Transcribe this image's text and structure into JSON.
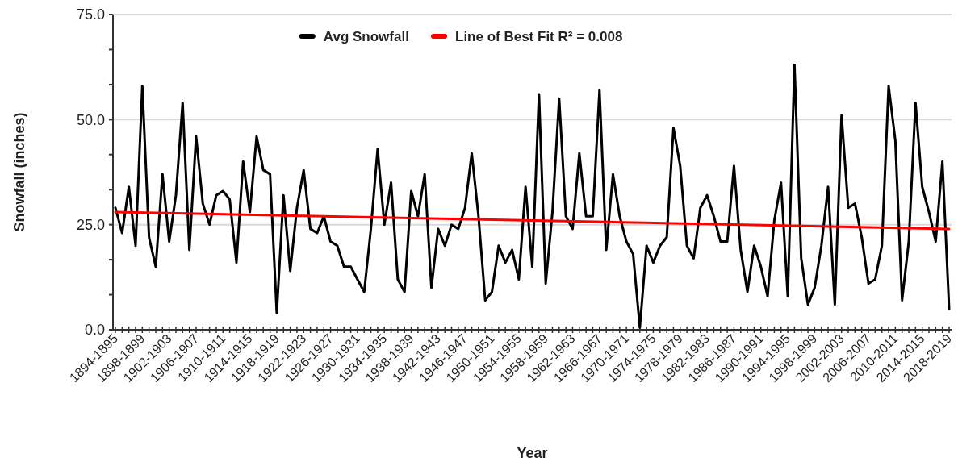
{
  "chart_data": {
    "type": "line",
    "xlabel": "Year",
    "ylabel": "Snowfall (inches)",
    "categories": [
      "1894-1895",
      null,
      null,
      null,
      "1898-1899",
      null,
      null,
      null,
      "1902-1903",
      null,
      null,
      null,
      "1906-1907",
      null,
      null,
      null,
      "1910-1911",
      null,
      null,
      null,
      "1914-1915",
      null,
      null,
      null,
      "1918-1919",
      null,
      null,
      null,
      "1922-1923",
      null,
      null,
      null,
      "1926-1927",
      null,
      null,
      null,
      "1930-1931",
      null,
      null,
      null,
      "1934-1935",
      null,
      null,
      null,
      "1938-1939",
      null,
      null,
      null,
      "1942-1943",
      null,
      null,
      null,
      "1946-1947",
      null,
      null,
      null,
      "1950-1951",
      null,
      null,
      null,
      "1954-1955",
      null,
      null,
      null,
      "1958-1959",
      null,
      null,
      null,
      "1962-1963",
      null,
      null,
      null,
      "1966-1967",
      null,
      null,
      null,
      "1970-1971",
      null,
      null,
      null,
      "1974-1975",
      null,
      null,
      null,
      "1978-1979",
      null,
      null,
      null,
      "1982-1983",
      null,
      null,
      null,
      "1986-1987",
      null,
      null,
      null,
      "1990-1991",
      null,
      null,
      null,
      "1994-1995",
      null,
      null,
      null,
      "1998-1999",
      null,
      null,
      null,
      "2002-2003",
      null,
      null,
      null,
      "2006-2007",
      null,
      null,
      null,
      "2010-2011",
      null,
      null,
      null,
      "2014-2015",
      null,
      null,
      null,
      "2018-2019"
    ],
    "series": [
      {
        "name": "Avg Snowfall",
        "color": "#000000",
        "values": [
          29,
          23,
          34,
          20,
          58,
          22,
          15,
          37,
          21,
          32,
          54,
          19,
          46,
          30,
          25,
          32,
          33,
          31,
          16,
          40,
          28,
          46,
          38,
          37,
          4,
          32,
          14,
          29,
          38,
          24,
          23,
          27,
          21,
          20,
          15,
          15,
          12,
          9,
          24,
          43,
          25,
          35,
          12,
          9,
          33,
          27,
          37,
          10,
          24,
          20,
          25,
          24,
          29,
          42,
          27,
          7,
          9,
          20,
          16,
          19,
          12,
          34,
          15,
          56,
          11,
          28,
          55,
          27,
          24,
          42,
          27,
          27,
          57,
          19,
          37,
          27,
          21,
          18,
          0.5,
          20,
          16,
          20,
          22,
          48,
          39,
          20,
          17,
          29,
          32,
          27,
          21,
          21,
          39,
          19,
          9,
          20,
          15,
          8,
          26,
          35,
          8,
          63,
          17,
          6,
          10,
          20,
          34,
          6,
          51,
          29,
          30,
          22,
          11,
          12,
          20,
          58,
          45,
          7,
          21,
          54,
          34,
          28,
          21,
          40,
          5
        ]
      },
      {
        "name": "Line of Best Fit R² = 0.008",
        "color": "#ff0000",
        "x": [
          "1894-1895",
          "2018-2019"
        ],
        "values": [
          28,
          24
        ]
      }
    ],
    "ylim": [
      0,
      75
    ],
    "yticks": [
      {
        "value": 0,
        "label": "0.0"
      },
      {
        "value": 8.33,
        "label": null
      },
      {
        "value": 16.67,
        "label": null
      },
      {
        "value": 25,
        "label": "25.0"
      },
      {
        "value": 33.33,
        "label": null
      },
      {
        "value": 41.67,
        "label": null
      },
      {
        "value": 50,
        "label": "50.0"
      },
      {
        "value": 58.33,
        "label": null
      },
      {
        "value": 66.67,
        "label": null
      },
      {
        "value": 75,
        "label": "75.0"
      }
    ],
    "grid": "y",
    "legend": "top",
    "marker": "none",
    "line_style": "solid"
  }
}
